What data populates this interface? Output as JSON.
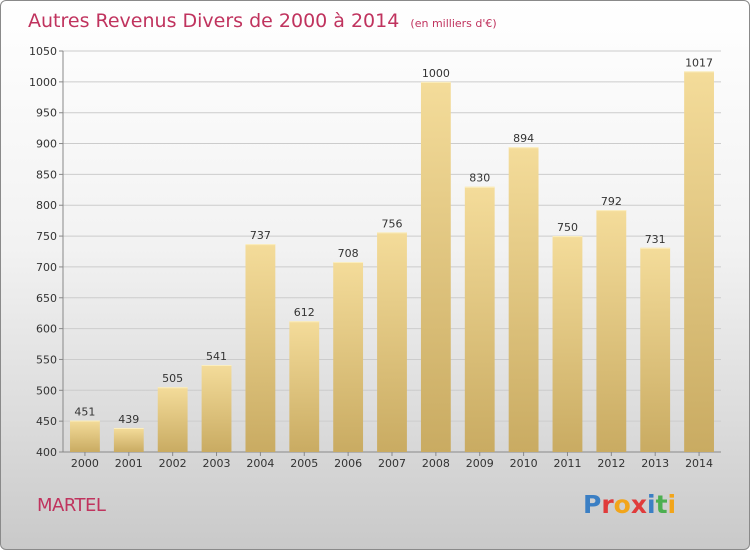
{
  "title": "Autres Revenus Divers de 2000 à 2014",
  "unit": "(en milliers d'€)",
  "commune": "MARTEL",
  "logo": {
    "letters": [
      "P",
      "r",
      "o",
      "x",
      "i",
      "t",
      "i"
    ],
    "colors": [
      "#3b7fc4",
      "#e03b3b",
      "#f2a51a",
      "#e03b3b",
      "#3b7fc4",
      "#4caf50",
      "#f2a51a"
    ]
  },
  "colors": {
    "title": "#c0335e",
    "bar_light": "#f4dc9a",
    "bar_dark": "#c9ab62",
    "grid": "#cccccc"
  },
  "chart_data": {
    "type": "bar",
    "categories": [
      "2000",
      "2001",
      "2002",
      "2003",
      "2004",
      "2005",
      "2006",
      "2007",
      "2008",
      "2009",
      "2010",
      "2011",
      "2012",
      "2013",
      "2014"
    ],
    "values": [
      451,
      439,
      505,
      541,
      737,
      612,
      708,
      756,
      1000,
      830,
      894,
      750,
      792,
      731,
      1017
    ],
    "ylim": [
      400,
      1050
    ],
    "yticks": [
      400,
      450,
      500,
      550,
      600,
      650,
      700,
      750,
      800,
      850,
      900,
      950,
      1000,
      1050
    ],
    "grid": true,
    "xlabel": "",
    "ylabel": ""
  }
}
